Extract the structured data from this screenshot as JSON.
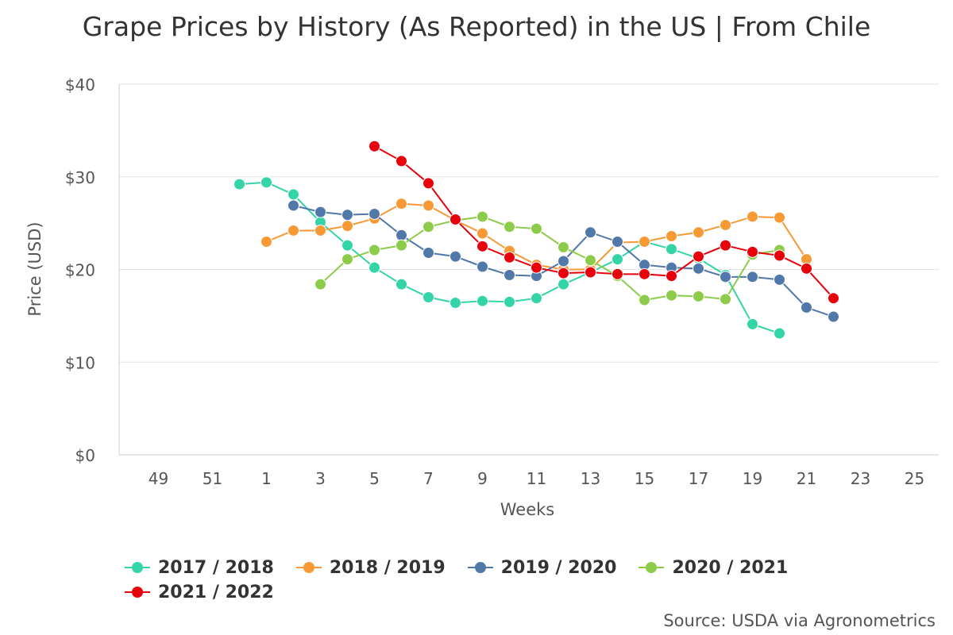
{
  "chart_data": {
    "type": "line",
    "title": "Grape Prices by History (As Reported) in the US | From Chile",
    "xlabel": "Weeks",
    "ylabel": "Price (USD)",
    "ylim": [
      0,
      40
    ],
    "yticks": [
      0,
      10,
      20,
      30,
      40
    ],
    "ytick_labels": [
      "$0",
      "$10",
      "$20",
      "$30",
      "$40"
    ],
    "xtick_labels": [
      "49",
      "51",
      "1",
      "3",
      "5",
      "7",
      "9",
      "11",
      "13",
      "15",
      "17",
      "19",
      "21",
      "23",
      "25"
    ],
    "x_positions": [
      "48",
      "49",
      "50",
      "51",
      "52",
      "1",
      "2",
      "3",
      "4",
      "5",
      "6",
      "7",
      "8",
      "9",
      "10",
      "11",
      "12",
      "13",
      "14",
      "15",
      "16",
      "17",
      "18",
      "19",
      "20",
      "21",
      "22",
      "23",
      "24",
      "25"
    ],
    "series": [
      {
        "name": "2017 / 2018",
        "color": "#33d4a8",
        "points": [
          [
            "52",
            29.2
          ],
          [
            "1",
            29.4
          ],
          [
            "2",
            28.1
          ],
          [
            "3",
            25.1
          ],
          [
            "4",
            22.6
          ],
          [
            "5",
            20.2
          ],
          [
            "6",
            18.4
          ],
          [
            "7",
            17.0
          ],
          [
            "8",
            16.4
          ],
          [
            "9",
            16.6
          ],
          [
            "10",
            16.5
          ],
          [
            "11",
            16.9
          ],
          [
            "12",
            18.4
          ],
          [
            "13",
            19.7
          ],
          [
            "14",
            21.1
          ],
          [
            "15",
            23.0
          ],
          [
            "16",
            22.2
          ],
          [
            "17",
            21.2
          ],
          [
            "18",
            19.4
          ],
          [
            "19",
            14.1
          ],
          [
            "20",
            13.1
          ]
        ]
      },
      {
        "name": "2018 / 2019",
        "color": "#f79a36",
        "points": [
          [
            "1",
            23.0
          ],
          [
            "2",
            24.2
          ],
          [
            "3",
            24.2
          ],
          [
            "4",
            24.7
          ],
          [
            "5",
            25.5
          ],
          [
            "6",
            27.1
          ],
          [
            "7",
            26.9
          ],
          [
            "8",
            25.3
          ],
          [
            "9",
            23.9
          ],
          [
            "10",
            22.0
          ],
          [
            "11",
            20.5
          ],
          [
            "12",
            20.0
          ],
          [
            "13",
            20.0
          ],
          [
            "14",
            22.9
          ],
          [
            "15",
            23.0
          ],
          [
            "16",
            23.6
          ],
          [
            "17",
            24.0
          ],
          [
            "18",
            24.8
          ],
          [
            "19",
            25.7
          ],
          [
            "20",
            25.6
          ],
          [
            "21",
            21.1
          ]
        ]
      },
      {
        "name": "2019 / 2020",
        "color": "#5078a8",
        "points": [
          [
            "2",
            26.9
          ],
          [
            "3",
            26.2
          ],
          [
            "4",
            25.9
          ],
          [
            "5",
            26.0
          ],
          [
            "6",
            23.7
          ],
          [
            "7",
            21.8
          ],
          [
            "8",
            21.4
          ],
          [
            "9",
            20.3
          ],
          [
            "10",
            19.4
          ],
          [
            "11",
            19.3
          ],
          [
            "12",
            20.9
          ],
          [
            "13",
            24.0
          ],
          [
            "14",
            23.0
          ],
          [
            "15",
            20.5
          ],
          [
            "16",
            20.2
          ],
          [
            "17",
            20.1
          ],
          [
            "18",
            19.2
          ],
          [
            "19",
            19.2
          ],
          [
            "20",
            18.9
          ],
          [
            "21",
            15.9
          ],
          [
            "22",
            14.9
          ]
        ]
      },
      {
        "name": "2020 / 2021",
        "color": "#8ccc4a",
        "points": [
          [
            "3",
            18.4
          ],
          [
            "4",
            21.1
          ],
          [
            "5",
            22.1
          ],
          [
            "6",
            22.6
          ],
          [
            "7",
            24.6
          ],
          [
            "8",
            25.3
          ],
          [
            "9",
            25.7
          ],
          [
            "10",
            24.6
          ],
          [
            "11",
            24.4
          ],
          [
            "12",
            22.4
          ],
          [
            "13",
            21.0
          ],
          [
            "14",
            19.3
          ],
          [
            "15",
            16.7
          ],
          [
            "16",
            17.2
          ],
          [
            "17",
            17.1
          ],
          [
            "18",
            16.8
          ],
          [
            "19",
            21.6
          ],
          [
            "20",
            22.1
          ]
        ]
      },
      {
        "name": "2021 / 2022",
        "color": "#e8000b",
        "points": [
          [
            "5",
            33.3
          ],
          [
            "6",
            31.7
          ],
          [
            "7",
            29.3
          ],
          [
            "8",
            25.4
          ],
          [
            "9",
            22.5
          ],
          [
            "10",
            21.3
          ],
          [
            "11",
            20.2
          ],
          [
            "12",
            19.6
          ],
          [
            "13",
            19.7
          ],
          [
            "14",
            19.5
          ],
          [
            "15",
            19.5
          ],
          [
            "16",
            19.3
          ],
          [
            "17",
            21.4
          ],
          [
            "18",
            22.6
          ],
          [
            "19",
            21.9
          ],
          [
            "20",
            21.5
          ],
          [
            "21",
            20.1
          ],
          [
            "22",
            16.9
          ]
        ]
      }
    ]
  },
  "source": "Source: USDA via Agronometrics"
}
